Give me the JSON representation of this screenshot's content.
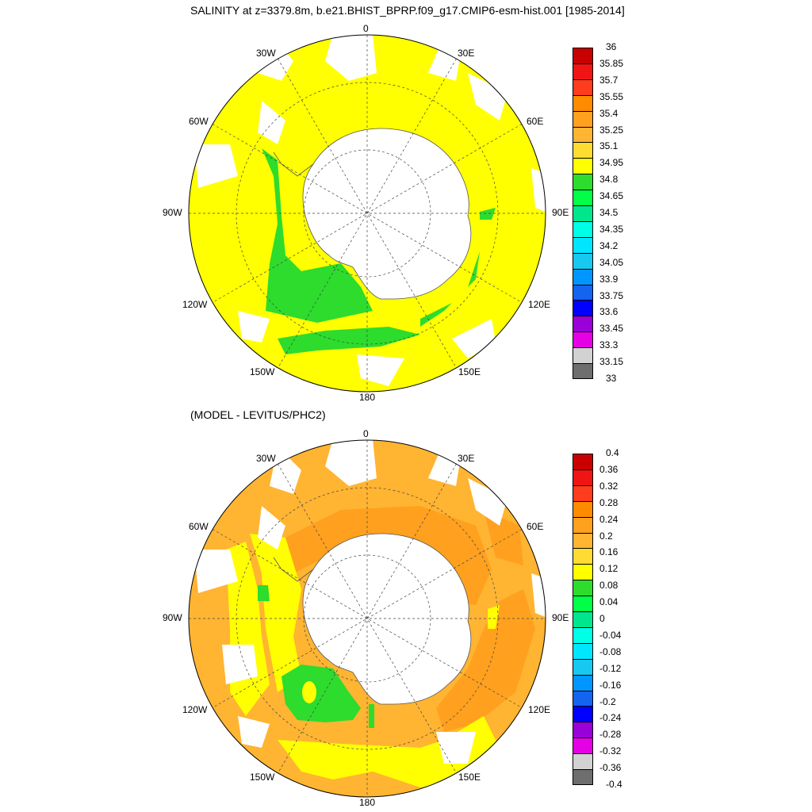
{
  "top_panel": {
    "title": "SALINITY at z=3379.8m, b.e21.BHIST_BPRP.f09_g17.CMIP6-esm-hist.001 [1985-2014]",
    "colorbar": {
      "colors": [
        "#6e6e6e",
        "#d2d2d2",
        "#e600e6",
        "#9a00d8",
        "#0000ff",
        "#1464f0",
        "#0096ff",
        "#18c8f0",
        "#00e6ff",
        "#00ffe6",
        "#00e68c",
        "#00ff46",
        "#2ddc2d",
        "#ffff00",
        "#ffdc32",
        "#ffb432",
        "#ffa01e",
        "#ff8c00",
        "#ff3c1e",
        "#f01414",
        "#c80000"
      ],
      "labels": [
        "33",
        "33.15",
        "33.3",
        "33.45",
        "33.6",
        "33.75",
        "33.9",
        "34.05",
        "34.2",
        "34.35",
        "34.5",
        "34.65",
        "34.8",
        "34.95",
        "35.1",
        "35.25",
        "35.4",
        "35.55",
        "35.7",
        "35.85",
        "36"
      ]
    }
  },
  "bottom_panel": {
    "title": "(MODEL - LEVITUS/PHC2)",
    "colorbar": {
      "colors": [
        "#6e6e6e",
        "#d2d2d2",
        "#e600e6",
        "#9a00d8",
        "#0000ff",
        "#1464f0",
        "#0096ff",
        "#18c8f0",
        "#00e6ff",
        "#00ffe6",
        "#00e68c",
        "#00ff46",
        "#2ddc2d",
        "#ffff00",
        "#ffdc32",
        "#ffb432",
        "#ffa01e",
        "#ff8c00",
        "#ff3c1e",
        "#f01414",
        "#c80000"
      ],
      "labels": [
        "-0.4",
        "-0.36",
        "-0.32",
        "-0.28",
        "-0.24",
        "-0.2",
        "-0.16",
        "-0.12",
        "-0.08",
        "-0.04",
        "0",
        "0.04",
        "0.08",
        "0.12",
        "0.16",
        "0.2",
        "0.24",
        "0.28",
        "0.32",
        "0.36",
        "0.4"
      ]
    }
  },
  "longitude_labels": {
    "lon_0": "0",
    "lon_30e": "30E",
    "lon_60e": "60E",
    "lon_90e": "90E",
    "lon_120e": "120E",
    "lon_150e": "150E",
    "lon_180": "180",
    "lon_150w": "150W",
    "lon_120w": "120W",
    "lon_90w": "90W",
    "lon_60w": "60W",
    "lon_30w": "30W"
  },
  "field_colors": {
    "top_main": "#ffff00",
    "top_low": "#2ddc2d",
    "bottom_main": "#ffb432",
    "bottom_mid": "#ffa01e",
    "bottom_low": "#ffff00",
    "bottom_green": "#2ddc2d",
    "continent": "#ffffff"
  }
}
